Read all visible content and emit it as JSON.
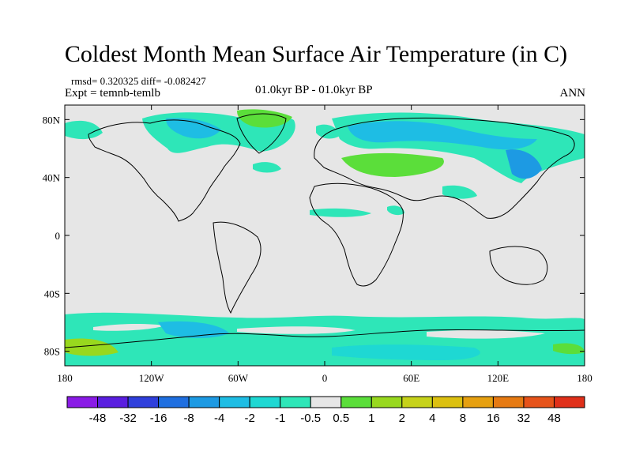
{
  "title": "Coldest Month Mean Surface Air Temperature (in C)",
  "stats": "rmsd= 0.320325 diff= -0.082427",
  "experiment": "Expt = temnb-temlb",
  "period": "01.0kyr BP - 01.0kyr BP",
  "season": "ANN",
  "axes": {
    "lon_ticks": [
      {
        "value": -180,
        "label": "180"
      },
      {
        "value": -120,
        "label": "120W"
      },
      {
        "value": -60,
        "label": "60W"
      },
      {
        "value": 0,
        "label": "0"
      },
      {
        "value": 60,
        "label": "60E"
      },
      {
        "value": 120,
        "label": "120E"
      },
      {
        "value": 180,
        "label": "180"
      }
    ],
    "lat_ticks": [
      {
        "value": 80,
        "label": "80N"
      },
      {
        "value": 40,
        "label": "40N"
      },
      {
        "value": 0,
        "label": "0"
      },
      {
        "value": -40,
        "label": "40S"
      },
      {
        "value": -80,
        "label": "80S"
      }
    ],
    "lon_range": [
      -180,
      180
    ],
    "lat_range": [
      -90,
      90
    ]
  },
  "colorbar": {
    "colors": [
      "#8a1be6",
      "#5a1ee0",
      "#2f3fdc",
      "#1f6fe0",
      "#1d9ae3",
      "#1ebde4",
      "#1ed8d3",
      "#2ee6b8",
      "#e6e6e6",
      "#5bde3a",
      "#98d81e",
      "#c6d21a",
      "#dcc010",
      "#e6a010",
      "#e67a12",
      "#e6531a",
      "#e0301a"
    ],
    "labels": [
      "-48",
      "-32",
      "-16",
      "-8",
      "-4",
      "-2",
      "-1",
      "-0.5",
      "0.5",
      "1",
      "2",
      "4",
      "8",
      "16",
      "32",
      "48"
    ]
  },
  "map_colors": {
    "background": "#e6e6e6",
    "cyan": "#2ee6b8",
    "light_blue": "#1ed8d3",
    "blue": "#1ebde4",
    "dark_blue": "#1d9ae3",
    "green": "#5bde3a",
    "yellow_green": "#98d81e"
  }
}
